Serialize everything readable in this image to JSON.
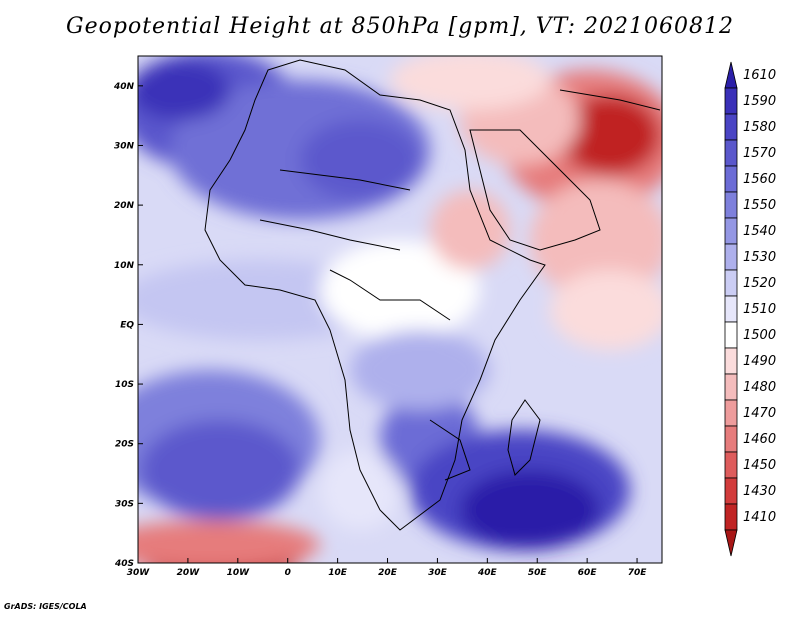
{
  "title": "Geopotential Height at 850hPa [gpm], VT: 2021060812",
  "credit": "GrADS: IGES/COLA",
  "map": {
    "lon_ticks": [
      "30W",
      "20W",
      "10W",
      "0",
      "10E",
      "20E",
      "30E",
      "40E",
      "50E",
      "60E",
      "70E"
    ],
    "lat_ticks": [
      "40N",
      "30N",
      "20N",
      "10N",
      "EQ",
      "10S",
      "20S",
      "30S",
      "40S"
    ]
  },
  "colorbar": {
    "levels": [
      "1610",
      "1590",
      "1580",
      "1570",
      "1560",
      "1550",
      "1540",
      "1530",
      "1520",
      "1510",
      "1500",
      "1490",
      "1480",
      "1470",
      "1460",
      "1450",
      "1430",
      "1410"
    ],
    "colors": [
      "#2b1fa8",
      "#3a30b8",
      "#4a44c4",
      "#5b58cc",
      "#6c6cd6",
      "#7e80dc",
      "#9497e4",
      "#aeb0ec",
      "#cbcdf4",
      "#e6e6fa",
      "#ffffff",
      "#fbdcdc",
      "#f4bcbc",
      "#ee9c9c",
      "#e67c7c",
      "#de5c5c",
      "#d23c3c",
      "#c02424",
      "#a81616"
    ]
  },
  "chart_data": {
    "type": "heatmap",
    "title": "Geopotential Height at 850hPa [gpm], VT: 2021060812",
    "variable": "Geopotential Height at 850hPa",
    "units": "gpm",
    "valid_time": "2021060812",
    "lon_range": [
      -30,
      75
    ],
    "lat_range": [
      -40,
      45
    ],
    "xticks": [
      "30W",
      "20W",
      "10W",
      "0",
      "10E",
      "20E",
      "30E",
      "40E",
      "50E",
      "60E",
      "70E"
    ],
    "yticks": [
      "40N",
      "30N",
      "20N",
      "10N",
      "EQ",
      "10S",
      "20S",
      "30S",
      "40S"
    ],
    "colorbar_levels": [
      1610,
      1590,
      1580,
      1570,
      1560,
      1550,
      1540,
      1530,
      1520,
      1510,
      1500,
      1490,
      1480,
      1470,
      1460,
      1450,
      1430,
      1410
    ]
  }
}
